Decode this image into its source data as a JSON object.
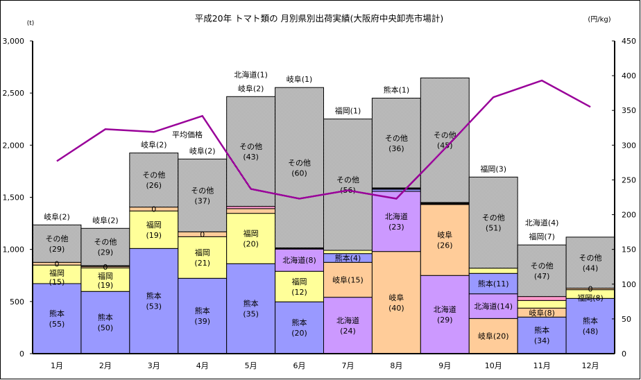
{
  "chart_data": {
    "type": "bar",
    "stacked": true,
    "title": "平成20年 トマト類の 月別県別出荷実績(大阪府中央卸売市場計)",
    "ylabel": "(t)",
    "y2label": "(円/kg)",
    "ylim": [
      0,
      3000
    ],
    "yticks": [
      "0",
      "500",
      "1,000",
      "1,500",
      "2,000",
      "2,500",
      "3,000"
    ],
    "y2lim": [
      0,
      450
    ],
    "y2ticks": [
      "0",
      "50",
      "100",
      "150",
      "200",
      "250",
      "300",
      "350",
      "400",
      "450"
    ],
    "grid": false,
    "legend": "none",
    "colors": {
      "熊本": "#9999ff",
      "福岡": "#ffff99",
      "岐阜": "#ffcc99",
      "北海道": "#cc99ff",
      "pink": "#ff99cc",
      "black": "#000000",
      "その他": "#c0c0c0",
      "line": "#990099"
    },
    "line_series": {
      "name": "平均価格",
      "axis": "right"
    },
    "categories": [
      "1月",
      "2月",
      "3月",
      "4月",
      "5月",
      "6月",
      "7月",
      "8月",
      "9月",
      "10月",
      "11月",
      "12月"
    ],
    "price": [
      277,
      323,
      319,
      342,
      237,
      223,
      235,
      223,
      295,
      369,
      393,
      355
    ],
    "months": [
      {
        "segments": [
          {
            "pref": "熊本",
            "color": "熊本",
            "value": 672,
            "label": [
              "熊本",
              "(55)"
            ]
          },
          {
            "pref": "福岡",
            "color": "福岡",
            "value": 178,
            "label": [
              "福岡",
              "(15)"
            ]
          },
          {
            "pref": "岐阜",
            "color": "岐阜",
            "value": 26,
            "label": [
              "0"
            ]
          },
          {
            "pref": "その他",
            "color": "その他",
            "value": 359,
            "label": [
              "その他",
              "(29)"
            ]
          }
        ],
        "above": [
          "岐阜(2)"
        ]
      },
      {
        "segments": [
          {
            "pref": "熊本",
            "color": "熊本",
            "value": 597,
            "label": [
              "熊本",
              "(50)"
            ]
          },
          {
            "pref": "福岡",
            "color": "福岡",
            "value": 226,
            "label": [
              "福岡",
              "(19)"
            ]
          },
          {
            "pref": "岐阜",
            "color": "岐阜",
            "value": 14,
            "label": [
              "0"
            ]
          },
          {
            "pref": "",
            "color": "black",
            "value": 7,
            "label": []
          },
          {
            "pref": "その他",
            "color": "その他",
            "value": 358,
            "label": [
              "その他",
              "(29)"
            ]
          }
        ],
        "above": [
          "岐阜(2)"
        ]
      },
      {
        "segments": [
          {
            "pref": "熊本",
            "color": "熊本",
            "value": 1009,
            "label": [
              "熊本",
              "(53)"
            ]
          },
          {
            "pref": "福岡",
            "color": "福岡",
            "value": 360,
            "label": [
              "福岡",
              "(19)"
            ]
          },
          {
            "pref": "岐阜",
            "color": "岐阜",
            "value": 37,
            "label": [
              "0"
            ]
          },
          {
            "pref": "その他",
            "color": "その他",
            "value": 519,
            "label": [
              "その他",
              "(26)"
            ]
          }
        ],
        "above": [
          "岐阜(2)"
        ]
      },
      {
        "segments": [
          {
            "pref": "熊本",
            "color": "熊本",
            "value": 723,
            "label": [
              "熊本",
              "(39)"
            ]
          },
          {
            "pref": "福岡",
            "color": "福岡",
            "value": 399,
            "label": [
              "福岡",
              "(21)"
            ]
          },
          {
            "pref": "岐阜",
            "color": "岐阜",
            "value": 47,
            "label": [
              "0"
            ]
          },
          {
            "pref": "その他",
            "color": "その他",
            "value": 698,
            "label": [
              "その他",
              "(37)"
            ]
          }
        ],
        "above": [
          "岐阜(2)"
        ]
      },
      {
        "segments": [
          {
            "pref": "熊本",
            "color": "熊本",
            "value": 863,
            "label": [
              "熊本",
              "(35)"
            ]
          },
          {
            "pref": "福岡",
            "color": "福岡",
            "value": 483,
            "label": [
              "福岡",
              "(20)"
            ]
          },
          {
            "pref": "岐阜",
            "color": "岐阜",
            "value": 45,
            "label": []
          },
          {
            "pref": "北海道",
            "color": "pink",
            "value": 22,
            "label": []
          },
          {
            "pref": "その他",
            "color": "その他",
            "value": 1053,
            "label": [
              "その他",
              "(43)"
            ]
          }
        ],
        "above": [
          "北海道(1)",
          "岐阜(2)"
        ]
      },
      {
        "segments": [
          {
            "pref": "熊本",
            "color": "熊本",
            "value": 497,
            "label": [
              "熊本",
              "(20)"
            ]
          },
          {
            "pref": "福岡",
            "color": "福岡",
            "value": 293,
            "label": [
              "福岡",
              "(12)"
            ]
          },
          {
            "pref": "北海道",
            "color": "北海道",
            "value": 213,
            "label": [
              "北海道(8)"
            ]
          },
          {
            "pref": "岐阜",
            "color": "black",
            "value": 12,
            "label": []
          },
          {
            "pref": "その他",
            "color": "その他",
            "value": 1538,
            "label": [
              "その他",
              "(60)"
            ]
          }
        ],
        "above": [
          "岐阜(1)"
        ]
      },
      {
        "segments": [
          {
            "pref": "北海道",
            "color": "北海道",
            "value": 541,
            "label": [
              "北海道",
              "(24)"
            ]
          },
          {
            "pref": "岐阜",
            "color": "岐阜",
            "value": 335,
            "label": [
              "岐阜(15)"
            ]
          },
          {
            "pref": "熊本",
            "color": "熊本",
            "value": 84,
            "label": [
              "熊本(4)"
            ]
          },
          {
            "pref": "福岡",
            "color": "福岡",
            "value": 31,
            "label": []
          },
          {
            "pref": "その他",
            "color": "その他",
            "value": 1260,
            "label": [
              "その他",
              "(56)"
            ]
          }
        ],
        "above": [
          "福岡(1)"
        ]
      },
      {
        "segments": [
          {
            "pref": "岐阜",
            "color": "岐阜",
            "value": 980,
            "label": [
              "岐阜",
              "(40)"
            ]
          },
          {
            "pref": "北海道",
            "color": "北海道",
            "value": 577,
            "label": [
              "北海道",
              "(23)"
            ]
          },
          {
            "pref": "熊本",
            "color": "熊本",
            "value": 20,
            "label": []
          },
          {
            "pref": "",
            "color": "black",
            "value": 13,
            "label": []
          },
          {
            "pref": "その他",
            "color": "その他",
            "value": 861,
            "label": [
              "その他",
              "(36)"
            ]
          }
        ],
        "above": [
          "熊本(1)"
        ]
      },
      {
        "segments": [
          {
            "pref": "北海道",
            "color": "北海道",
            "value": 750,
            "label": [
              "北海道",
              "(29)"
            ]
          },
          {
            "pref": "岐阜",
            "color": "岐阜",
            "value": 681,
            "label": [
              "岐阜",
              "(26)"
            ]
          },
          {
            "pref": "",
            "color": "black",
            "value": 19,
            "label": []
          },
          {
            "pref": "その他",
            "color": "その他",
            "value": 1195,
            "label": [
              "その他",
              "(45)"
            ]
          }
        ],
        "above": []
      },
      {
        "segments": [
          {
            "pref": "岐阜",
            "color": "岐阜",
            "value": 337,
            "label": [
              "岐阜(20)"
            ]
          },
          {
            "pref": "北海道",
            "color": "北海道",
            "value": 237,
            "label": [
              "北海道(14)"
            ]
          },
          {
            "pref": "熊本",
            "color": "熊本",
            "value": 196,
            "label": [
              "熊本(11)"
            ]
          },
          {
            "pref": "福岡",
            "color": "福岡",
            "value": 50,
            "label": []
          },
          {
            "pref": "その他",
            "color": "その他",
            "value": 874,
            "label": [
              "その他",
              "(51)"
            ]
          }
        ],
        "above": [
          "福岡(3)"
        ]
      },
      {
        "segments": [
          {
            "pref": "熊本",
            "color": "熊本",
            "value": 351,
            "label": [
              "熊本",
              "(34)"
            ]
          },
          {
            "pref": "岐阜",
            "color": "岐阜",
            "value": 86,
            "label": [
              "岐阜(8)"
            ]
          },
          {
            "pref": "福岡",
            "color": "福岡",
            "value": 73,
            "label": []
          },
          {
            "pref": "北海道",
            "color": "pink",
            "value": 38,
            "label": []
          },
          {
            "pref": "その他",
            "color": "その他",
            "value": 495,
            "label": [
              "その他",
              "(47)"
            ]
          }
        ],
        "above": [
          "北海道(4)",
          "福岡(7)"
        ]
      },
      {
        "segments": [
          {
            "pref": "熊本",
            "color": "熊本",
            "value": 530,
            "label": [
              "熊本",
              "(48)"
            ]
          },
          {
            "pref": "福岡",
            "color": "福岡",
            "value": 84,
            "label": [
              "福岡(8)"
            ]
          },
          {
            "pref": "岐阜",
            "color": "岐阜",
            "value": 14,
            "label": [
              "0"
            ]
          },
          {
            "pref": "その他",
            "color": "その他",
            "value": 490,
            "label": [
              "その他",
              "(44)"
            ]
          }
        ],
        "above": []
      }
    ]
  }
}
